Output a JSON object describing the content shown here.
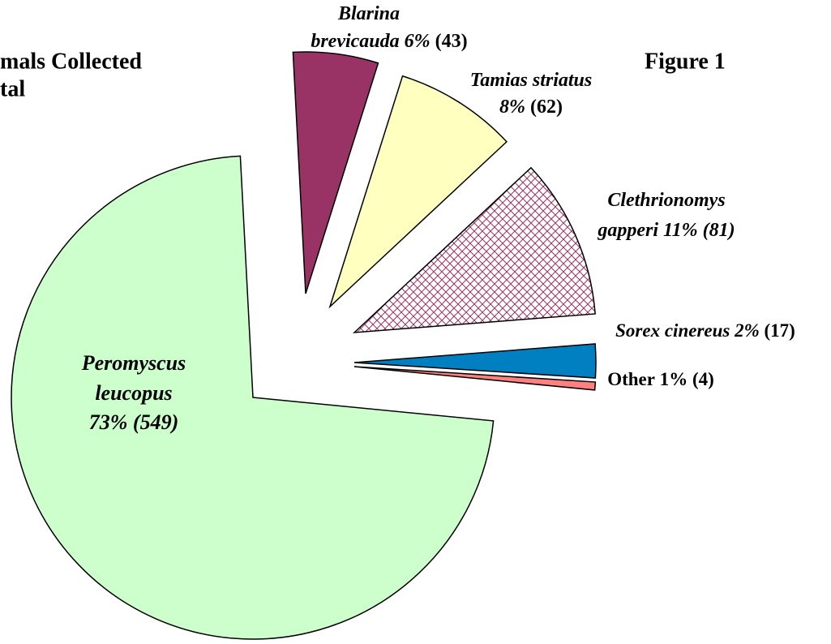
{
  "chart_data": {
    "type": "pie",
    "title": [
      "mals Collected",
      "tal"
    ],
    "annotations": [
      "Figure 1"
    ],
    "categories": [
      "Blarina brevicauda",
      "Tamias striatus",
      "Clethrionomys gapperi",
      "Sorex cinereus",
      "Other",
      "Peromyscus leucopus"
    ],
    "values": [
      43,
      62,
      81,
      17,
      4,
      549
    ],
    "value_labels": [
      "6% (43)",
      "8% (62)",
      "11% (81)",
      "2% (17)",
      "1% (4)",
      "73% (549)"
    ],
    "colors": [
      "#993366",
      "#ffffc0",
      "hatch",
      "#0080c0",
      "#ff8080",
      "#ccffcc"
    ]
  }
}
